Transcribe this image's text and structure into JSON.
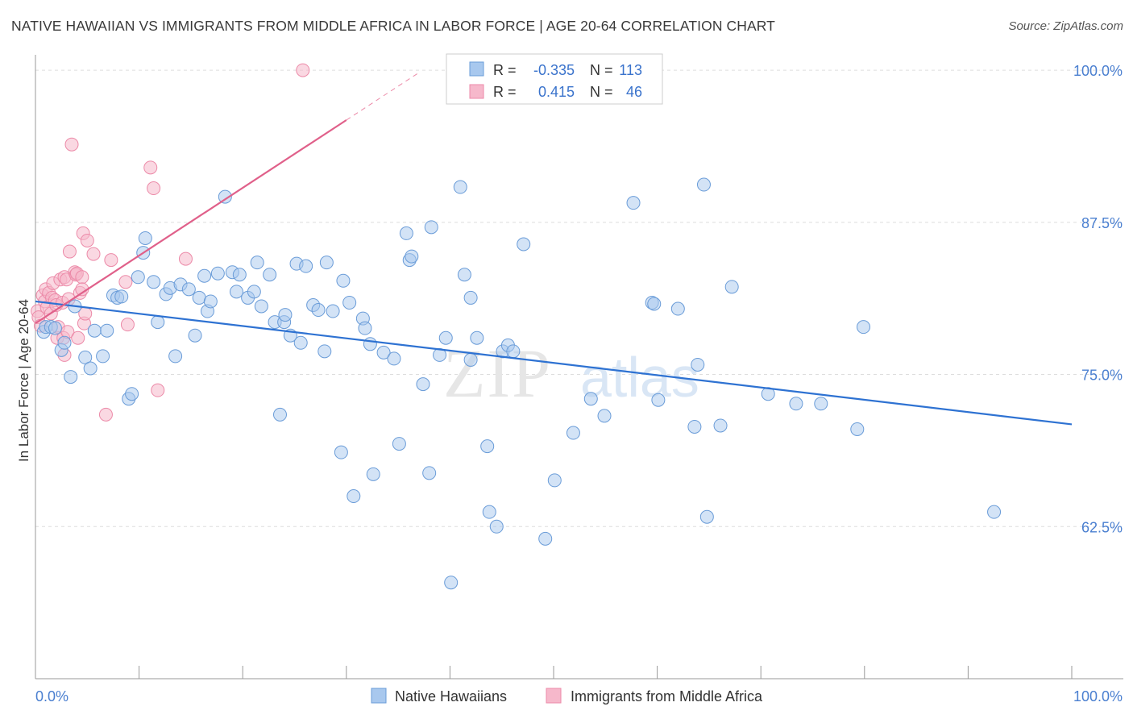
{
  "title": "NATIVE HAWAIIAN VS IMMIGRANTS FROM MIDDLE AFRICA IN LABOR FORCE | AGE 20-64 CORRELATION CHART",
  "source": "Source: ZipAtlas.com",
  "watermark": "ZIPatlas",
  "colors": {
    "blue_fill": "#a8c8ee",
    "blue_stroke": "#6a9cd8",
    "blue_line": "#2e72d2",
    "pink_fill": "#f6b8cb",
    "pink_stroke": "#ec8aa8",
    "pink_line": "#e0608a",
    "tick_label": "#4a7fd0",
    "grid": "#dddddd"
  },
  "stats_box": {
    "rows": [
      {
        "r_label": "R =",
        "r_value": "-0.335",
        "n_label": "N =",
        "n_value": "113",
        "series": "blue"
      },
      {
        "r_label": "R =",
        "r_value": "0.415",
        "n_label": "N =",
        "n_value": "46",
        "series": "pink"
      }
    ]
  },
  "chart_data": {
    "type": "scatter",
    "title": "NATIVE HAWAIIAN VS IMMIGRANTS FROM MIDDLE AFRICA IN LABOR FORCE | AGE 20-64 CORRELATION CHART",
    "xlabel": "",
    "ylabel": "In Labor Force | Age 20-64",
    "xlim": [
      0,
      100
    ],
    "ylim": [
      50,
      101
    ],
    "x_tick_labels": [
      "0.0%",
      "100.0%"
    ],
    "y_ticks": [
      62.5,
      75.0,
      87.5,
      100.0
    ],
    "y_tick_labels": [
      "62.5%",
      "75.0%",
      "87.5%",
      "100.0%"
    ],
    "grid": true,
    "legend_position": "bottom-center",
    "series": [
      {
        "name": "Native Hawaiians",
        "color": "blue",
        "trend": {
          "x0": 0,
          "y0": 81.0,
          "x1": 100,
          "y1": 70.9
        },
        "points": [
          [
            0.8,
            78.5
          ],
          [
            1.0,
            78.9
          ],
          [
            1.5,
            78.9
          ],
          [
            1.9,
            78.8
          ],
          [
            2.5,
            77.0
          ],
          [
            2.8,
            77.6
          ],
          [
            3.4,
            74.8
          ],
          [
            3.8,
            80.6
          ],
          [
            4.8,
            76.4
          ],
          [
            5.3,
            75.5
          ],
          [
            5.7,
            78.6
          ],
          [
            6.5,
            76.5
          ],
          [
            6.9,
            78.6
          ],
          [
            7.5,
            81.5
          ],
          [
            7.9,
            81.3
          ],
          [
            8.3,
            81.4
          ],
          [
            9.0,
            73.0
          ],
          [
            9.3,
            73.4
          ],
          [
            9.9,
            83.0
          ],
          [
            10.4,
            85.0
          ],
          [
            10.6,
            86.2
          ],
          [
            11.4,
            82.6
          ],
          [
            11.8,
            79.3
          ],
          [
            12.6,
            81.6
          ],
          [
            13.0,
            82.1
          ],
          [
            13.5,
            76.5
          ],
          [
            14.0,
            82.4
          ],
          [
            14.8,
            82.0
          ],
          [
            15.4,
            78.2
          ],
          [
            15.8,
            81.3
          ],
          [
            16.3,
            83.1
          ],
          [
            16.6,
            80.2
          ],
          [
            16.9,
            81.0
          ],
          [
            17.6,
            83.3
          ],
          [
            18.3,
            89.6
          ],
          [
            19.0,
            83.4
          ],
          [
            19.4,
            81.8
          ],
          [
            19.7,
            83.2
          ],
          [
            20.5,
            81.3
          ],
          [
            21.1,
            81.8
          ],
          [
            21.4,
            84.2
          ],
          [
            21.8,
            80.6
          ],
          [
            22.6,
            83.2
          ],
          [
            23.1,
            79.3
          ],
          [
            23.6,
            71.7
          ],
          [
            24.0,
            79.3
          ],
          [
            24.1,
            79.9
          ],
          [
            24.6,
            78.2
          ],
          [
            25.2,
            84.1
          ],
          [
            25.6,
            77.6
          ],
          [
            26.1,
            83.9
          ],
          [
            26.8,
            80.7
          ],
          [
            27.3,
            80.3
          ],
          [
            27.9,
            76.9
          ],
          [
            28.1,
            84.2
          ],
          [
            28.7,
            80.2
          ],
          [
            29.5,
            68.6
          ],
          [
            29.7,
            82.7
          ],
          [
            30.3,
            80.9
          ],
          [
            30.7,
            65.0
          ],
          [
            31.6,
            79.6
          ],
          [
            31.8,
            78.8
          ],
          [
            32.3,
            77.5
          ],
          [
            32.6,
            66.8
          ],
          [
            33.6,
            76.8
          ],
          [
            34.6,
            76.3
          ],
          [
            35.1,
            69.3
          ],
          [
            35.8,
            86.6
          ],
          [
            36.1,
            84.4
          ],
          [
            36.3,
            84.7
          ],
          [
            37.4,
            74.2
          ],
          [
            38.0,
            66.9
          ],
          [
            38.2,
            87.1
          ],
          [
            39.0,
            76.6
          ],
          [
            39.6,
            78.0
          ],
          [
            40.1,
            57.9
          ],
          [
            41.0,
            90.4
          ],
          [
            41.4,
            83.2
          ],
          [
            42.0,
            81.3
          ],
          [
            42.0,
            76.2
          ],
          [
            42.6,
            78.0
          ],
          [
            43.6,
            69.1
          ],
          [
            43.8,
            63.7
          ],
          [
            44.5,
            62.5
          ],
          [
            45.1,
            76.9
          ],
          [
            45.6,
            77.4
          ],
          [
            46.1,
            76.9
          ],
          [
            47.1,
            85.7
          ],
          [
            49.2,
            61.5
          ],
          [
            50.1,
            66.3
          ],
          [
            51.9,
            70.2
          ],
          [
            53.6,
            73.0
          ],
          [
            54.9,
            71.6
          ],
          [
            57.7,
            89.1
          ],
          [
            59.5,
            80.9
          ],
          [
            59.7,
            80.8
          ],
          [
            60.1,
            72.9
          ],
          [
            62.0,
            80.4
          ],
          [
            63.6,
            70.7
          ],
          [
            63.9,
            75.8
          ],
          [
            64.5,
            90.6
          ],
          [
            64.8,
            63.3
          ],
          [
            66.1,
            70.8
          ],
          [
            67.2,
            82.2
          ],
          [
            70.7,
            73.4
          ],
          [
            73.4,
            72.6
          ],
          [
            75.8,
            72.6
          ],
          [
            79.3,
            70.5
          ],
          [
            79.9,
            78.9
          ],
          [
            92.5,
            63.7
          ]
        ]
      },
      {
        "name": "Immigrants from Middle Africa",
        "color": "pink",
        "trend": {
          "x0": 0,
          "y0": 79.2,
          "x1": 30,
          "y1": 95.9,
          "dashed_to_x": 37,
          "dashed_to_y": 99.8
        },
        "points": [
          [
            0.2,
            80.2
          ],
          [
            0.3,
            79.7
          ],
          [
            0.5,
            79.0
          ],
          [
            0.7,
            81.5
          ],
          [
            0.9,
            81.0
          ],
          [
            1.0,
            82.0
          ],
          [
            1.1,
            80.5
          ],
          [
            1.3,
            81.7
          ],
          [
            1.5,
            80.0
          ],
          [
            1.6,
            81.3
          ],
          [
            1.7,
            82.5
          ],
          [
            1.9,
            81.1
          ],
          [
            2.0,
            80.7
          ],
          [
            2.1,
            78.0
          ],
          [
            2.2,
            78.9
          ],
          [
            2.4,
            82.8
          ],
          [
            2.6,
            80.9
          ],
          [
            2.7,
            78.0
          ],
          [
            2.8,
            76.6
          ],
          [
            2.8,
            83.0
          ],
          [
            3.0,
            82.8
          ],
          [
            3.1,
            78.5
          ],
          [
            3.2,
            81.2
          ],
          [
            3.3,
            85.1
          ],
          [
            3.5,
            93.9
          ],
          [
            3.8,
            83.4
          ],
          [
            3.9,
            83.2
          ],
          [
            4.0,
            83.3
          ],
          [
            4.1,
            78.0
          ],
          [
            4.3,
            81.7
          ],
          [
            4.5,
            83.0
          ],
          [
            4.5,
            82.0
          ],
          [
            4.6,
            86.6
          ],
          [
            4.7,
            79.2
          ],
          [
            4.8,
            80.0
          ],
          [
            5.0,
            86.0
          ],
          [
            5.6,
            84.9
          ],
          [
            6.8,
            71.7
          ],
          [
            7.3,
            84.4
          ],
          [
            8.7,
            82.6
          ],
          [
            8.9,
            79.1
          ],
          [
            11.1,
            92.0
          ],
          [
            11.4,
            90.3
          ],
          [
            11.8,
            73.7
          ],
          [
            14.5,
            84.5
          ],
          [
            25.8,
            100.0
          ]
        ]
      }
    ]
  },
  "legend": {
    "items": [
      {
        "label": "Native Hawaiians",
        "series": "blue"
      },
      {
        "label": "Immigrants from Middle Africa",
        "series": "pink"
      }
    ]
  }
}
